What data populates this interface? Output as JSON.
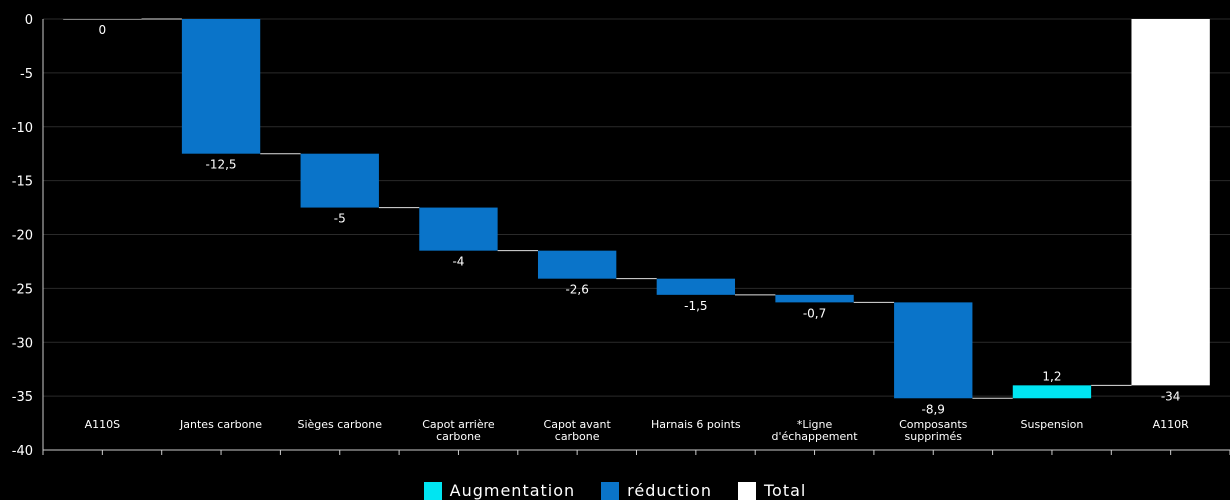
{
  "chart_data": {
    "type": "waterfall",
    "categories": [
      "A110S",
      "Jantes carbone",
      "Sièges carbone",
      "Capot arrière carbone",
      "Capot avant carbone",
      "Harnais 6 points",
      "*Ligne d'échappement",
      "Composants supprimés",
      "Suspension",
      "A110R"
    ],
    "category_lines": [
      [
        "A110S"
      ],
      [
        "Jantes carbone"
      ],
      [
        "Sièges carbone"
      ],
      [
        "Capot arrière",
        "carbone"
      ],
      [
        "Capot avant",
        "carbone"
      ],
      [
        "Harnais 6 points"
      ],
      [
        "*Ligne",
        "d'échappement"
      ],
      [
        "Composants",
        "supprimés"
      ],
      [
        "Suspension"
      ],
      [
        "A110R"
      ]
    ],
    "values": [
      0,
      -12.5,
      -5,
      -4,
      -2.6,
      -1.5,
      -0.7,
      -8.9,
      1.2,
      -34
    ],
    "kinds": [
      "total",
      "decrease",
      "decrease",
      "decrease",
      "decrease",
      "decrease",
      "decrease",
      "decrease",
      "increase",
      "total"
    ],
    "data_labels": [
      "0",
      "-12,5",
      "-5",
      "-4",
      "-2,6",
      "-1,5",
      "-0,7",
      "-8,9",
      "1,2",
      "-34"
    ],
    "y_ticks": [
      0,
      -5,
      -10,
      -15,
      -20,
      -25,
      -30,
      -35,
      -40
    ],
    "y_tick_labels": [
      "0",
      "-5",
      "-10",
      "-15",
      "-20",
      "-25",
      "-30",
      "-35",
      "-40"
    ],
    "ylim": [
      -40,
      0
    ],
    "grid": true,
    "legend_placement": "bottom-center",
    "legend": [
      {
        "key": "increase",
        "label": "Augmentation",
        "color": "#00e5f2"
      },
      {
        "key": "decrease",
        "label": "réduction",
        "color": "#0a74c9"
      },
      {
        "key": "total",
        "label": "Total",
        "color": "#ffffff"
      }
    ],
    "colors": {
      "background": "#000000",
      "gridline": "#2a2a2a",
      "axis": "#cccccc",
      "connector": "#e0e0e0"
    }
  }
}
